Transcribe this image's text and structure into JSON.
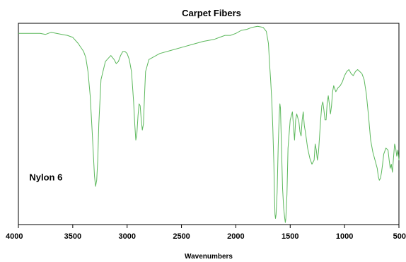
{
  "chart_data": {
    "type": "line",
    "title": "Carpet Fibers",
    "xlabel": "Wavenumbers",
    "ylabel": "",
    "xlim": [
      4000,
      500
    ],
    "x_reversed": true,
    "xticks": [
      "4000",
      "3500",
      "3000",
      "2500",
      "2000",
      "1500",
      "1000",
      "500"
    ],
    "xtick_values": [
      4000,
      3500,
      3000,
      2500,
      2000,
      1500,
      1000,
      500
    ],
    "ylim": [
      0,
      100
    ],
    "grid": false,
    "legend": "none",
    "line_color": "#5cb85c",
    "annotations": [
      {
        "text": "Nylon 6",
        "x": 3900,
        "y": 22
      }
    ],
    "series": [
      {
        "x": [
          4000,
          3900,
          3800,
          3750,
          3700,
          3650,
          3600,
          3550,
          3500,
          3450,
          3400,
          3380,
          3360,
          3340,
          3320,
          3300,
          3290,
          3280,
          3270,
          3260,
          3240,
          3200,
          3150,
          3120,
          3100,
          3080,
          3060,
          3040,
          3020,
          3000,
          2980,
          2960,
          2940,
          2930,
          2920,
          2910,
          2900,
          2890,
          2880,
          2870,
          2860,
          2850,
          2840,
          2830,
          2800,
          2700,
          2600,
          2500,
          2400,
          2300,
          2200,
          2150,
          2100,
          2050,
          2000,
          1950,
          1900,
          1850,
          1800,
          1750,
          1720,
          1700,
          1690,
          1680,
          1670,
          1660,
          1650,
          1645,
          1640,
          1635,
          1630,
          1620,
          1610,
          1600,
          1595,
          1590,
          1580,
          1570,
          1560,
          1550,
          1545,
          1540,
          1530,
          1520,
          1500,
          1480,
          1470,
          1460,
          1450,
          1440,
          1420,
          1410,
          1400,
          1390,
          1380,
          1370,
          1360,
          1340,
          1320,
          1300,
          1280,
          1270,
          1260,
          1250,
          1240,
          1230,
          1220,
          1210,
          1200,
          1190,
          1180,
          1170,
          1160,
          1150,
          1140,
          1130,
          1120,
          1110,
          1100,
          1080,
          1060,
          1040,
          1020,
          1000,
          980,
          960,
          940,
          920,
          900,
          880,
          860,
          840,
          820,
          800,
          780,
          760,
          740,
          720,
          700,
          690,
          680,
          670,
          660,
          650,
          640,
          620,
          600,
          590,
          580,
          570,
          560,
          550,
          540,
          530,
          520,
          510,
          500
        ],
        "y": [
          95,
          95,
          95,
          94.5,
          95.5,
          95,
          94.5,
          94,
          93,
          90,
          86,
          83,
          76,
          64,
          45,
          24,
          19,
          22,
          32,
          50,
          72,
          81,
          84,
          82,
          80,
          81,
          84,
          86,
          86,
          85,
          82,
          76,
          61,
          50,
          42,
          45,
          54,
          60,
          59,
          52,
          47,
          50,
          64,
          76,
          82,
          85,
          86.5,
          88,
          89.5,
          91,
          92,
          93,
          94,
          94,
          95,
          96.5,
          97,
          98,
          98.5,
          98,
          96,
          90,
          80,
          72,
          62,
          48,
          30,
          15,
          5,
          3,
          5,
          16,
          40,
          55,
          60,
          58,
          38,
          18,
          8,
          3,
          1,
          3,
          15,
          38,
          52,
          56,
          49,
          42,
          52,
          55,
          51,
          46,
          44,
          52,
          56,
          49,
          46,
          38,
          33,
          30,
          32,
          40,
          37,
          32,
          36,
          44,
          52,
          59,
          61,
          57,
          52,
          52,
          60,
          64,
          60,
          55,
          59,
          66,
          69,
          66,
          68,
          69,
          71,
          74,
          76,
          77,
          75,
          74,
          76,
          77,
          76,
          75,
          72,
          65,
          54,
          42,
          36,
          32,
          28,
          24,
          22,
          23,
          26,
          30,
          35,
          38,
          37,
          32,
          28,
          30,
          26,
          33,
          40,
          38,
          34,
          37,
          32
        ]
      }
    ]
  }
}
